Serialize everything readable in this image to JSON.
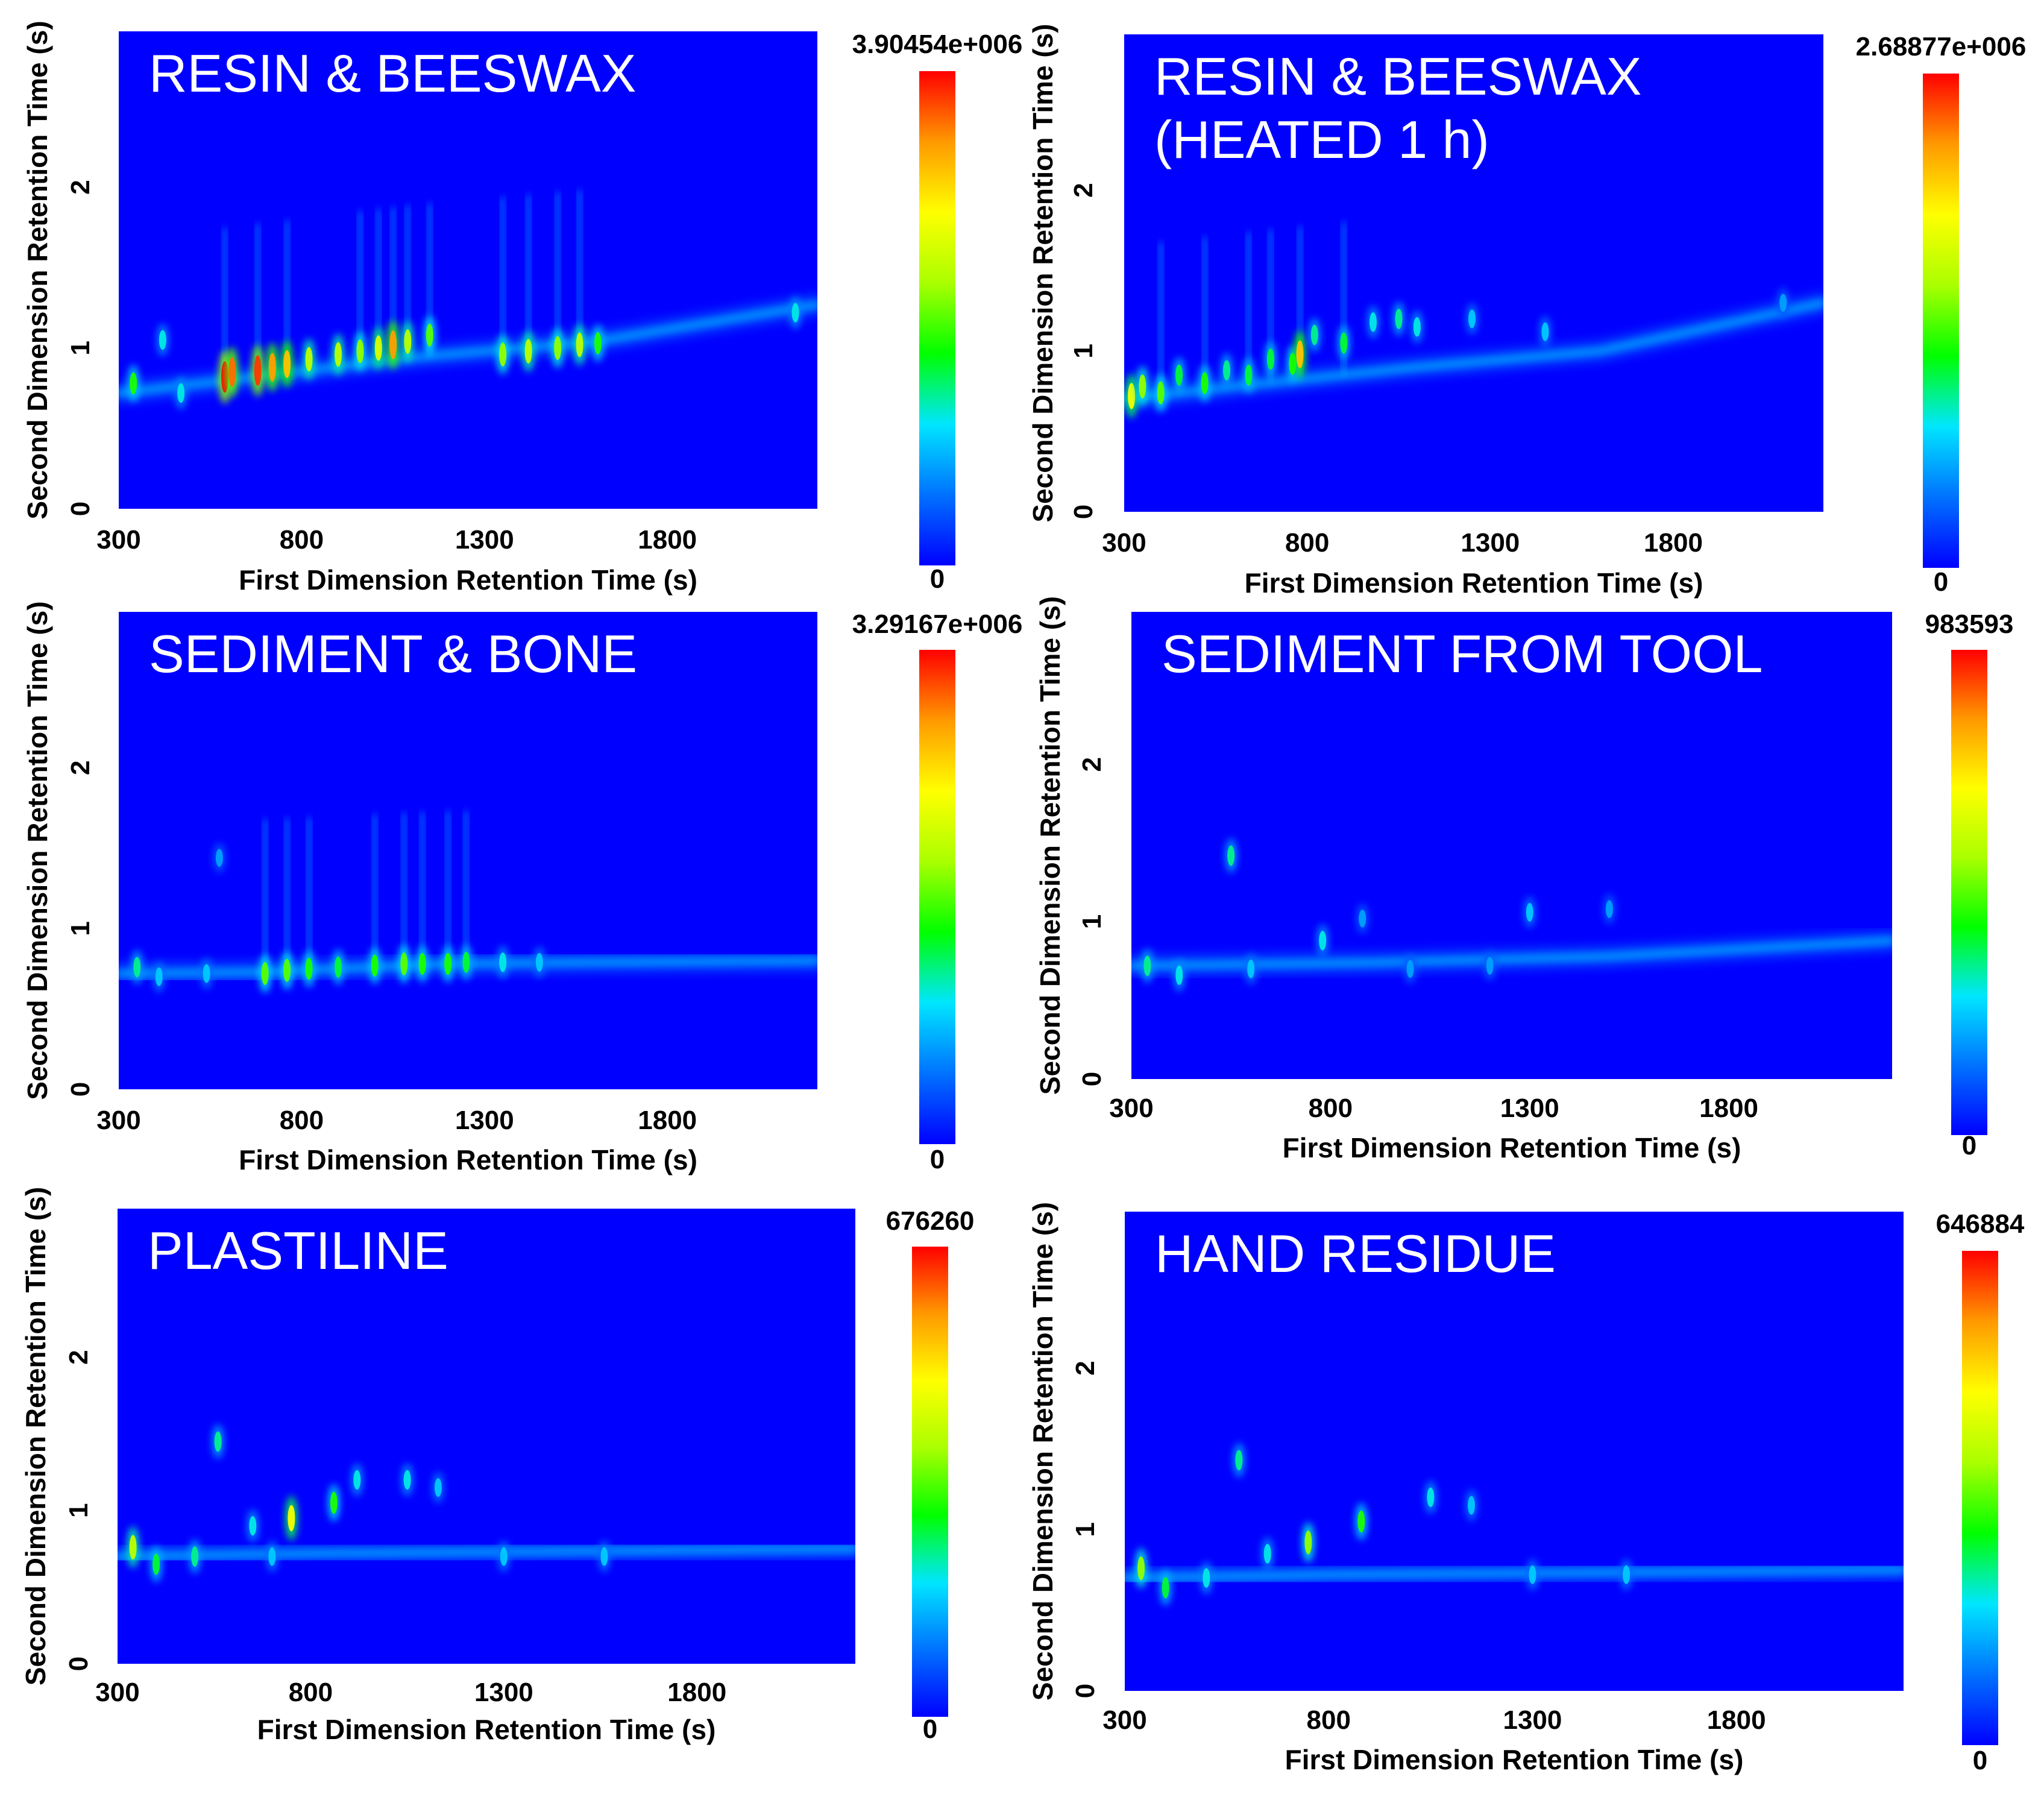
{
  "figure": {
    "colors": {
      "background": "#0000ff",
      "colormap": [
        "#0000ff",
        "#0072ff",
        "#00e6ff",
        "#00ff00",
        "#aaff00",
        "#ffff00",
        "#ff9900",
        "#ff0000"
      ]
    }
  },
  "chart_data": [
    {
      "type": "heatmap",
      "title_lines": [
        "RESIN & BEESWAX"
      ],
      "xlabel": "First Dimension Retention Time (s)",
      "ylabel": "Second Dimension Retention Time (s)",
      "xticks": [
        "300",
        "800",
        "1300",
        "1800"
      ],
      "yticks": [
        "0",
        "1",
        "2"
      ],
      "xlim": [
        300,
        2210
      ],
      "ylim": [
        0,
        2.97
      ],
      "colorbar_max_label": "3.90454e+006",
      "colorbar_min_label": "0",
      "colorbar_max_value": 3904540,
      "baseline": [
        [
          300,
          0.72
        ],
        [
          600,
          0.8
        ],
        [
          1100,
          0.94
        ],
        [
          1600,
          1.04
        ],
        [
          2210,
          1.27
        ]
      ],
      "peaks": [
        [
          340,
          0.78,
          0.45
        ],
        [
          420,
          1.05,
          0.3
        ],
        [
          470,
          0.72,
          0.3
        ],
        [
          590,
          0.82,
          1.0
        ],
        [
          610,
          0.85,
          0.9
        ],
        [
          680,
          0.86,
          0.95
        ],
        [
          720,
          0.88,
          0.85
        ],
        [
          760,
          0.9,
          0.8
        ],
        [
          820,
          0.93,
          0.6
        ],
        [
          900,
          0.96,
          0.6
        ],
        [
          960,
          0.98,
          0.55
        ],
        [
          1010,
          1.0,
          0.65
        ],
        [
          1050,
          1.02,
          0.85
        ],
        [
          1090,
          1.04,
          0.6
        ],
        [
          1150,
          1.08,
          0.5
        ],
        [
          1350,
          0.96,
          0.55
        ],
        [
          1420,
          0.98,
          0.6
        ],
        [
          1500,
          1.0,
          0.55
        ],
        [
          1560,
          1.02,
          0.6
        ],
        [
          1610,
          1.03,
          0.45
        ],
        [
          2150,
          1.22,
          0.3
        ]
      ],
      "streaks": [
        590,
        680,
        760,
        960,
        1010,
        1050,
        1090,
        1150,
        1350,
        1420,
        1500,
        1560
      ]
    },
    {
      "type": "heatmap",
      "title_lines": [
        "RESIN & BEESWAX",
        "(HEATED 1 h)"
      ],
      "xlabel": "First Dimension Retention Time (s)",
      "ylabel": "Second Dimension Retention Time (s)",
      "xticks": [
        "300",
        "800",
        "1300",
        "1800"
      ],
      "yticks": [
        "0",
        "1",
        "2"
      ],
      "xlim": [
        300,
        2210
      ],
      "ylim": [
        0,
        2.97
      ],
      "colorbar_max_label": "2.68877e+006",
      "colorbar_min_label": "0",
      "colorbar_max_value": 2688770,
      "baseline": [
        [
          300,
          0.7
        ],
        [
          600,
          0.78
        ],
        [
          1100,
          0.9
        ],
        [
          1600,
          1.0
        ],
        [
          2210,
          1.3
        ]
      ],
      "peaks": [
        [
          320,
          0.72,
          0.7
        ],
        [
          350,
          0.78,
          0.55
        ],
        [
          400,
          0.74,
          0.5
        ],
        [
          450,
          0.85,
          0.4
        ],
        [
          520,
          0.8,
          0.45
        ],
        [
          580,
          0.88,
          0.35
        ],
        [
          640,
          0.85,
          0.4
        ],
        [
          700,
          0.95,
          0.4
        ],
        [
          760,
          0.92,
          0.45
        ],
        [
          780,
          0.98,
          0.8
        ],
        [
          820,
          1.1,
          0.35
        ],
        [
          900,
          1.05,
          0.4
        ],
        [
          980,
          1.18,
          0.3
        ],
        [
          1050,
          1.2,
          0.35
        ],
        [
          1100,
          1.15,
          0.3
        ],
        [
          1250,
          1.2,
          0.25
        ],
        [
          1450,
          1.12,
          0.25
        ],
        [
          2100,
          1.3,
          0.2
        ]
      ],
      "streaks": [
        400,
        520,
        640,
        700,
        780,
        900
      ]
    },
    {
      "type": "heatmap",
      "title_lines": [
        "SEDIMENT & BONE"
      ],
      "xlabel": "First Dimension Retention Time (s)",
      "ylabel": "Second Dimension Retention Time (s)",
      "xticks": [
        "300",
        "800",
        "1300",
        "1800"
      ],
      "yticks": [
        "0",
        "1",
        "2"
      ],
      "xlim": [
        300,
        2210
      ],
      "ylim": [
        0,
        2.97
      ],
      "colorbar_max_label": "3.29167e+006",
      "colorbar_min_label": "0",
      "colorbar_max_value": 3291670,
      "baseline": [
        [
          300,
          0.72
        ],
        [
          700,
          0.73
        ],
        [
          1200,
          0.78
        ],
        [
          1600,
          0.79
        ],
        [
          2210,
          0.8
        ]
      ],
      "peaks": [
        [
          350,
          0.76,
          0.35
        ],
        [
          410,
          0.7,
          0.25
        ],
        [
          540,
          0.72,
          0.25
        ],
        [
          700,
          0.72,
          0.5
        ],
        [
          760,
          0.74,
          0.5
        ],
        [
          820,
          0.75,
          0.45
        ],
        [
          900,
          0.76,
          0.4
        ],
        [
          1000,
          0.77,
          0.45
        ],
        [
          1080,
          0.78,
          0.5
        ],
        [
          1130,
          0.78,
          0.45
        ],
        [
          1200,
          0.78,
          0.45
        ],
        [
          1250,
          0.79,
          0.4
        ],
        [
          1350,
          0.79,
          0.3
        ],
        [
          1450,
          0.79,
          0.25
        ],
        [
          575,
          1.44,
          0.2
        ]
      ],
      "streaks": [
        700,
        760,
        820,
        1000,
        1080,
        1130,
        1200,
        1250
      ]
    },
    {
      "type": "heatmap",
      "title_lines": [
        "SEDIMENT FROM TOOL"
      ],
      "xlabel": "First Dimension Retention Time (s)",
      "ylabel": "Second Dimension Retention Time (s)",
      "xticks": [
        "300",
        "800",
        "1300",
        "1800"
      ],
      "yticks": [
        "0",
        "1",
        "2"
      ],
      "xlim": [
        300,
        2210
      ],
      "ylim": [
        0,
        2.97
      ],
      "colorbar_max_label": "983593",
      "colorbar_min_label": "0",
      "colorbar_max_value": 983593,
      "baseline": [
        [
          300,
          0.72
        ],
        [
          900,
          0.74
        ],
        [
          1500,
          0.78
        ],
        [
          2210,
          0.88
        ]
      ],
      "peaks": [
        [
          340,
          0.72,
          0.35
        ],
        [
          420,
          0.66,
          0.3
        ],
        [
          550,
          1.42,
          0.35
        ],
        [
          600,
          0.7,
          0.25
        ],
        [
          780,
          0.88,
          0.3
        ],
        [
          880,
          1.02,
          0.2
        ],
        [
          1300,
          1.06,
          0.25
        ],
        [
          1500,
          1.08,
          0.2
        ],
        [
          1000,
          0.7,
          0.2
        ],
        [
          1200,
          0.72,
          0.2
        ]
      ],
      "streaks": []
    },
    {
      "type": "heatmap",
      "title_lines": [
        "PLASTILINE"
      ],
      "xlabel": "First Dimension Retention Time (s)",
      "ylabel": "Second Dimension Retention Time (s)",
      "xticks": [
        "300",
        "800",
        "1300",
        "1800"
      ],
      "yticks": [
        "0",
        "1",
        "2"
      ],
      "xlim": [
        300,
        2210
      ],
      "ylim": [
        0,
        2.97
      ],
      "colorbar_max_label": "676260",
      "colorbar_min_label": "0",
      "colorbar_max_value": 676260,
      "baseline": [
        [
          300,
          0.7
        ],
        [
          800,
          0.72
        ],
        [
          2210,
          0.75
        ]
      ],
      "peaks": [
        [
          340,
          0.76,
          0.6
        ],
        [
          400,
          0.65,
          0.4
        ],
        [
          500,
          0.7,
          0.35
        ],
        [
          560,
          1.45,
          0.35
        ],
        [
          650,
          0.9,
          0.3
        ],
        [
          700,
          0.7,
          0.25
        ],
        [
          750,
          0.95,
          0.7
        ],
        [
          860,
          1.05,
          0.45
        ],
        [
          920,
          1.2,
          0.3
        ],
        [
          1050,
          1.2,
          0.3
        ],
        [
          1130,
          1.15,
          0.25
        ],
        [
          1300,
          0.7,
          0.25
        ],
        [
          1560,
          0.7,
          0.25
        ]
      ],
      "streaks": []
    },
    {
      "type": "heatmap",
      "title_lines": [
        "HAND RESIDUE"
      ],
      "xlabel": "First Dimension Retention Time (s)",
      "ylabel": "Second Dimension Retention Time (s)",
      "xticks": [
        "300",
        "800",
        "1300",
        "1800"
      ],
      "yticks": [
        "0",
        "1",
        "2"
      ],
      "xlim": [
        300,
        2210
      ],
      "ylim": [
        0,
        2.97
      ],
      "colorbar_max_label": "646884",
      "colorbar_min_label": "0",
      "colorbar_max_value": 646884,
      "baseline": [
        [
          300,
          0.7
        ],
        [
          800,
          0.72
        ],
        [
          2210,
          0.75
        ]
      ],
      "peaks": [
        [
          340,
          0.76,
          0.55
        ],
        [
          400,
          0.64,
          0.4
        ],
        [
          500,
          0.7,
          0.3
        ],
        [
          580,
          1.43,
          0.35
        ],
        [
          650,
          0.85,
          0.3
        ],
        [
          750,
          0.92,
          0.55
        ],
        [
          880,
          1.05,
          0.45
        ],
        [
          1050,
          1.2,
          0.3
        ],
        [
          1150,
          1.15,
          0.25
        ],
        [
          1300,
          0.72,
          0.25
        ],
        [
          1530,
          0.72,
          0.25
        ]
      ],
      "streaks": []
    }
  ]
}
